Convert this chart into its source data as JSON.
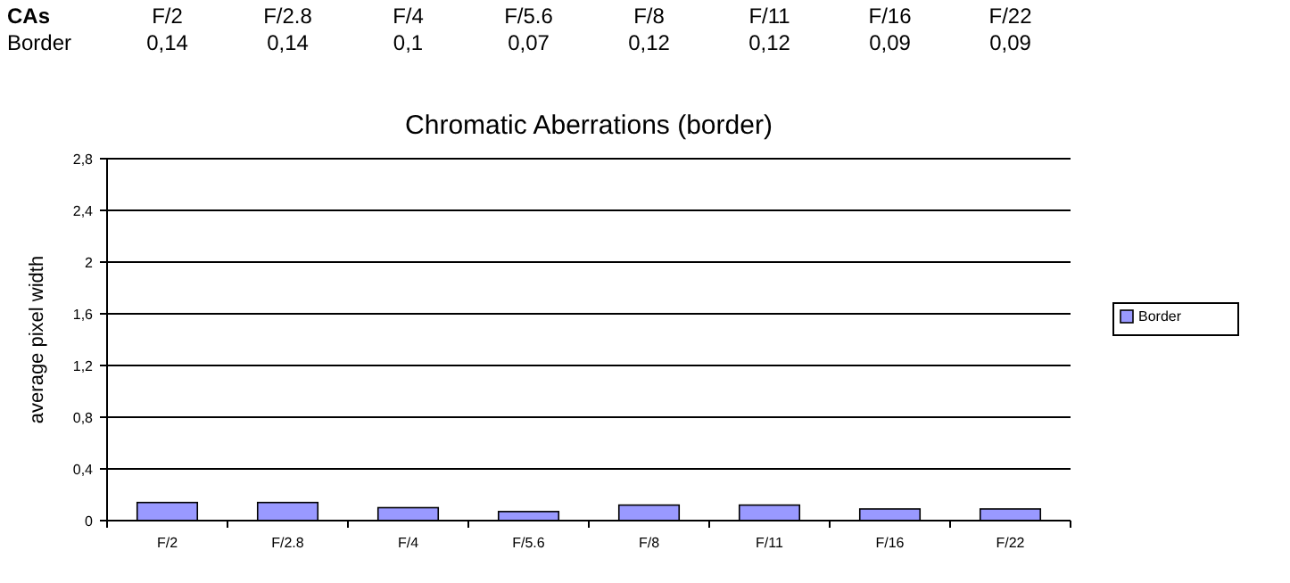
{
  "chart_data": {
    "type": "bar",
    "title": "Chromatic Aberrations (border)",
    "ylabel": "average pixel width",
    "categories": [
      "F/2",
      "F/2.8",
      "F/4",
      "F/5.6",
      "F/8",
      "F/11",
      "F/16",
      "F/22"
    ],
    "series": [
      {
        "name": "Border",
        "color": "#9999ff",
        "values": [
          0.14,
          0.14,
          0.1,
          0.07,
          0.12,
          0.12,
          0.09,
          0.09
        ],
        "value_labels": [
          "0,14",
          "0,14",
          "0,1",
          "0,07",
          "0,12",
          "0,12",
          "0,09",
          "0,09"
        ]
      }
    ],
    "annotations": [
      "CAs"
    ],
    "ylim": [
      0,
      2.8
    ],
    "yticks": [
      0,
      {
        "value": 0.4,
        "label": "0,4"
      },
      {
        "value": 0.8,
        "label": "0,8"
      },
      {
        "value": 1.2,
        "label": "1,2"
      },
      {
        "value": 1.6,
        "label": "1,6"
      },
      2,
      {
        "value": 2.4,
        "label": "2,4"
      },
      {
        "value": 2.8,
        "label": "2,8"
      }
    ],
    "grid": "y",
    "legend": "right"
  }
}
